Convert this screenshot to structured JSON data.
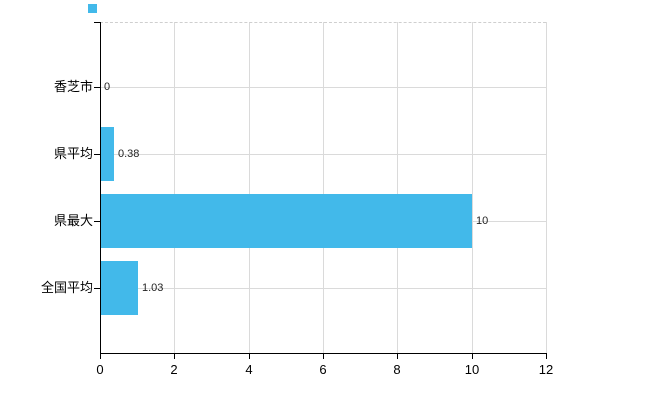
{
  "chart_data": {
    "type": "bar",
    "orientation": "horizontal",
    "title": "",
    "xlabel": "",
    "ylabel": "",
    "categories": [
      "香芝市",
      "県平均",
      "県最大",
      "全国平均"
    ],
    "values": [
      0,
      0.38,
      10,
      1.03
    ],
    "value_labels": [
      "0",
      "0.38",
      "10",
      "1.03"
    ],
    "xlim": [
      0,
      12
    ],
    "x_ticks": [
      "0",
      "2",
      "4",
      "6",
      "8",
      "10",
      "12"
    ],
    "x_tick_values": [
      0,
      2,
      4,
      6,
      8,
      10,
      12
    ],
    "grid": true,
    "legend_position": "top-left",
    "bar_color": "#42b9ea",
    "legend_marker_color": "#42b9ea",
    "grid_color": "#dadada",
    "axis_color": "#000000",
    "background_color": "#ffffff"
  }
}
